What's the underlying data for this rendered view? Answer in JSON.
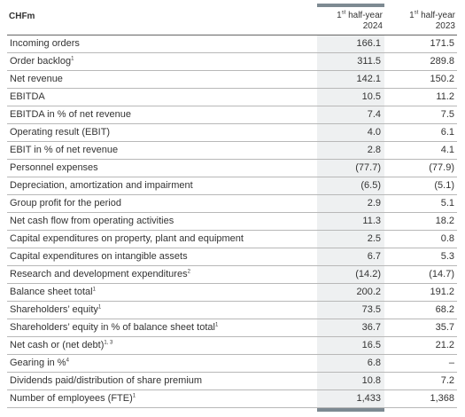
{
  "header": {
    "currency": "CHFm",
    "col1_line1_pre": "1",
    "col1_line1_sup": "st",
    "col1_line1_post": " half-year",
    "col1_line2": "2024",
    "col2_line1_pre": "1",
    "col2_line1_sup": "st",
    "col2_line1_post": " half-year",
    "col2_line2": "2023"
  },
  "rows": [
    {
      "label": "Incoming orders",
      "sup": "",
      "v2024": "166.1",
      "v2023": "171.5"
    },
    {
      "label": "Order backlog",
      "sup": "1",
      "v2024": "311.5",
      "v2023": "289.8"
    },
    {
      "label": "Net revenue",
      "sup": "",
      "v2024": "142.1",
      "v2023": "150.2"
    },
    {
      "label": "EBITDA",
      "sup": "",
      "v2024": "10.5",
      "v2023": "11.2"
    },
    {
      "label": "EBITDA in % of net revenue",
      "sup": "",
      "v2024": "7.4",
      "v2023": "7.5"
    },
    {
      "label": "Operating result (EBIT)",
      "sup": "",
      "v2024": "4.0",
      "v2023": "6.1"
    },
    {
      "label": "EBIT in % of net revenue",
      "sup": "",
      "v2024": "2.8",
      "v2023": "4.1"
    },
    {
      "label": "Personnel expenses",
      "sup": "",
      "v2024": "(77.7)",
      "v2023": "(77.9)"
    },
    {
      "label": "Depreciation, amortization and impairment",
      "sup": "",
      "v2024": "(6.5)",
      "v2023": "(5.1)"
    },
    {
      "label": "Group profit for the period",
      "sup": "",
      "v2024": "2.9",
      "v2023": "5.1"
    },
    {
      "label": "Net cash flow from operating activities",
      "sup": "",
      "v2024": "11.3",
      "v2023": "18.2"
    },
    {
      "label": "Capital expenditures on property, plant and equipment",
      "sup": "",
      "v2024": "2.5",
      "v2023": "0.8"
    },
    {
      "label": "Capital expenditures on intangible assets",
      "sup": "",
      "v2024": "6.7",
      "v2023": "5.3"
    },
    {
      "label": "Research and development expenditures",
      "sup": "2",
      "v2024": "(14.2)",
      "v2023": "(14.7)"
    },
    {
      "label": "Balance sheet total",
      "sup": "1",
      "v2024": "200.2",
      "v2023": "191.2"
    },
    {
      "label": "Shareholders’ equity",
      "sup": "1",
      "v2024": "73.5",
      "v2023": "68.2"
    },
    {
      "label": "Shareholders’ equity in % of balance sheet total",
      "sup": "1",
      "v2024": "36.7",
      "v2023": "35.7"
    },
    {
      "label": "Net cash or (net debt)",
      "sup": "1, 3",
      "v2024": "16.5",
      "v2023": "21.2"
    },
    {
      "label": "Gearing in %",
      "sup": "4",
      "v2024": "6.8",
      "v2023": "–"
    },
    {
      "label": "Dividends paid/distribution of share premium",
      "sup": "",
      "v2024": "10.8",
      "v2023": "7.2"
    },
    {
      "label": "Number of employees (FTE)",
      "sup": "1",
      "v2024": "1,433",
      "v2023": "1,368"
    }
  ],
  "colors": {
    "highlight_column": "#eef0f1",
    "accent_bar": "#7d8a92",
    "rule": "#b8b8b8",
    "text": "#333333"
  }
}
